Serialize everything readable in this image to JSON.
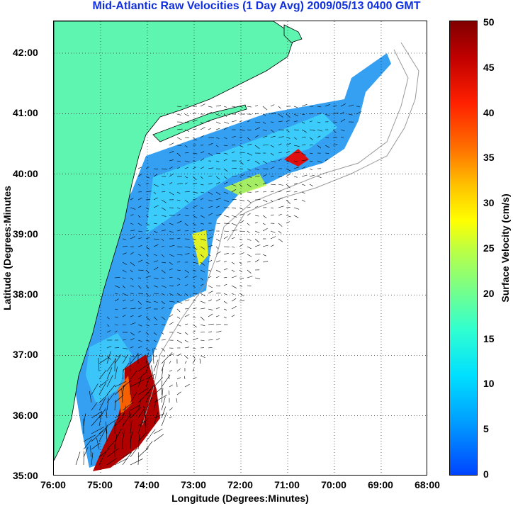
{
  "title": "Mid-Atlantic Raw Velocities (1 Day Avg) 2009/05/13 0400 GMT",
  "xlabel": "Longitude (Degrees:Minutes)",
  "ylabel": "Latitude (Degrees:Minutes",
  "colorbar_label": "Surface Velocity (cm/s)",
  "x_ticks": [
    "76:00",
    "75:00",
    "74:00",
    "73:00",
    "72:00",
    "71:00",
    "70:00",
    "69:00",
    "68:00"
  ],
  "y_ticks": [
    "42:00",
    "41:00",
    "40:00",
    "39:00",
    "38:00",
    "37:00",
    "36:00",
    "35:00"
  ],
  "colorbar_ticks": [
    "50",
    "45",
    "40",
    "35",
    "30",
    "25",
    "20",
    "15",
    "10",
    "5",
    "0"
  ],
  "colors": {
    "land": "#5ef5b0",
    "title": "#1030e0",
    "shelf_contour": "#999999"
  },
  "map": {
    "lon_range": [
      -76,
      -68
    ],
    "lat_range": [
      35,
      42.5
    ],
    "velocity_range_cms": [
      0,
      50
    ],
    "grid": "dotted"
  }
}
